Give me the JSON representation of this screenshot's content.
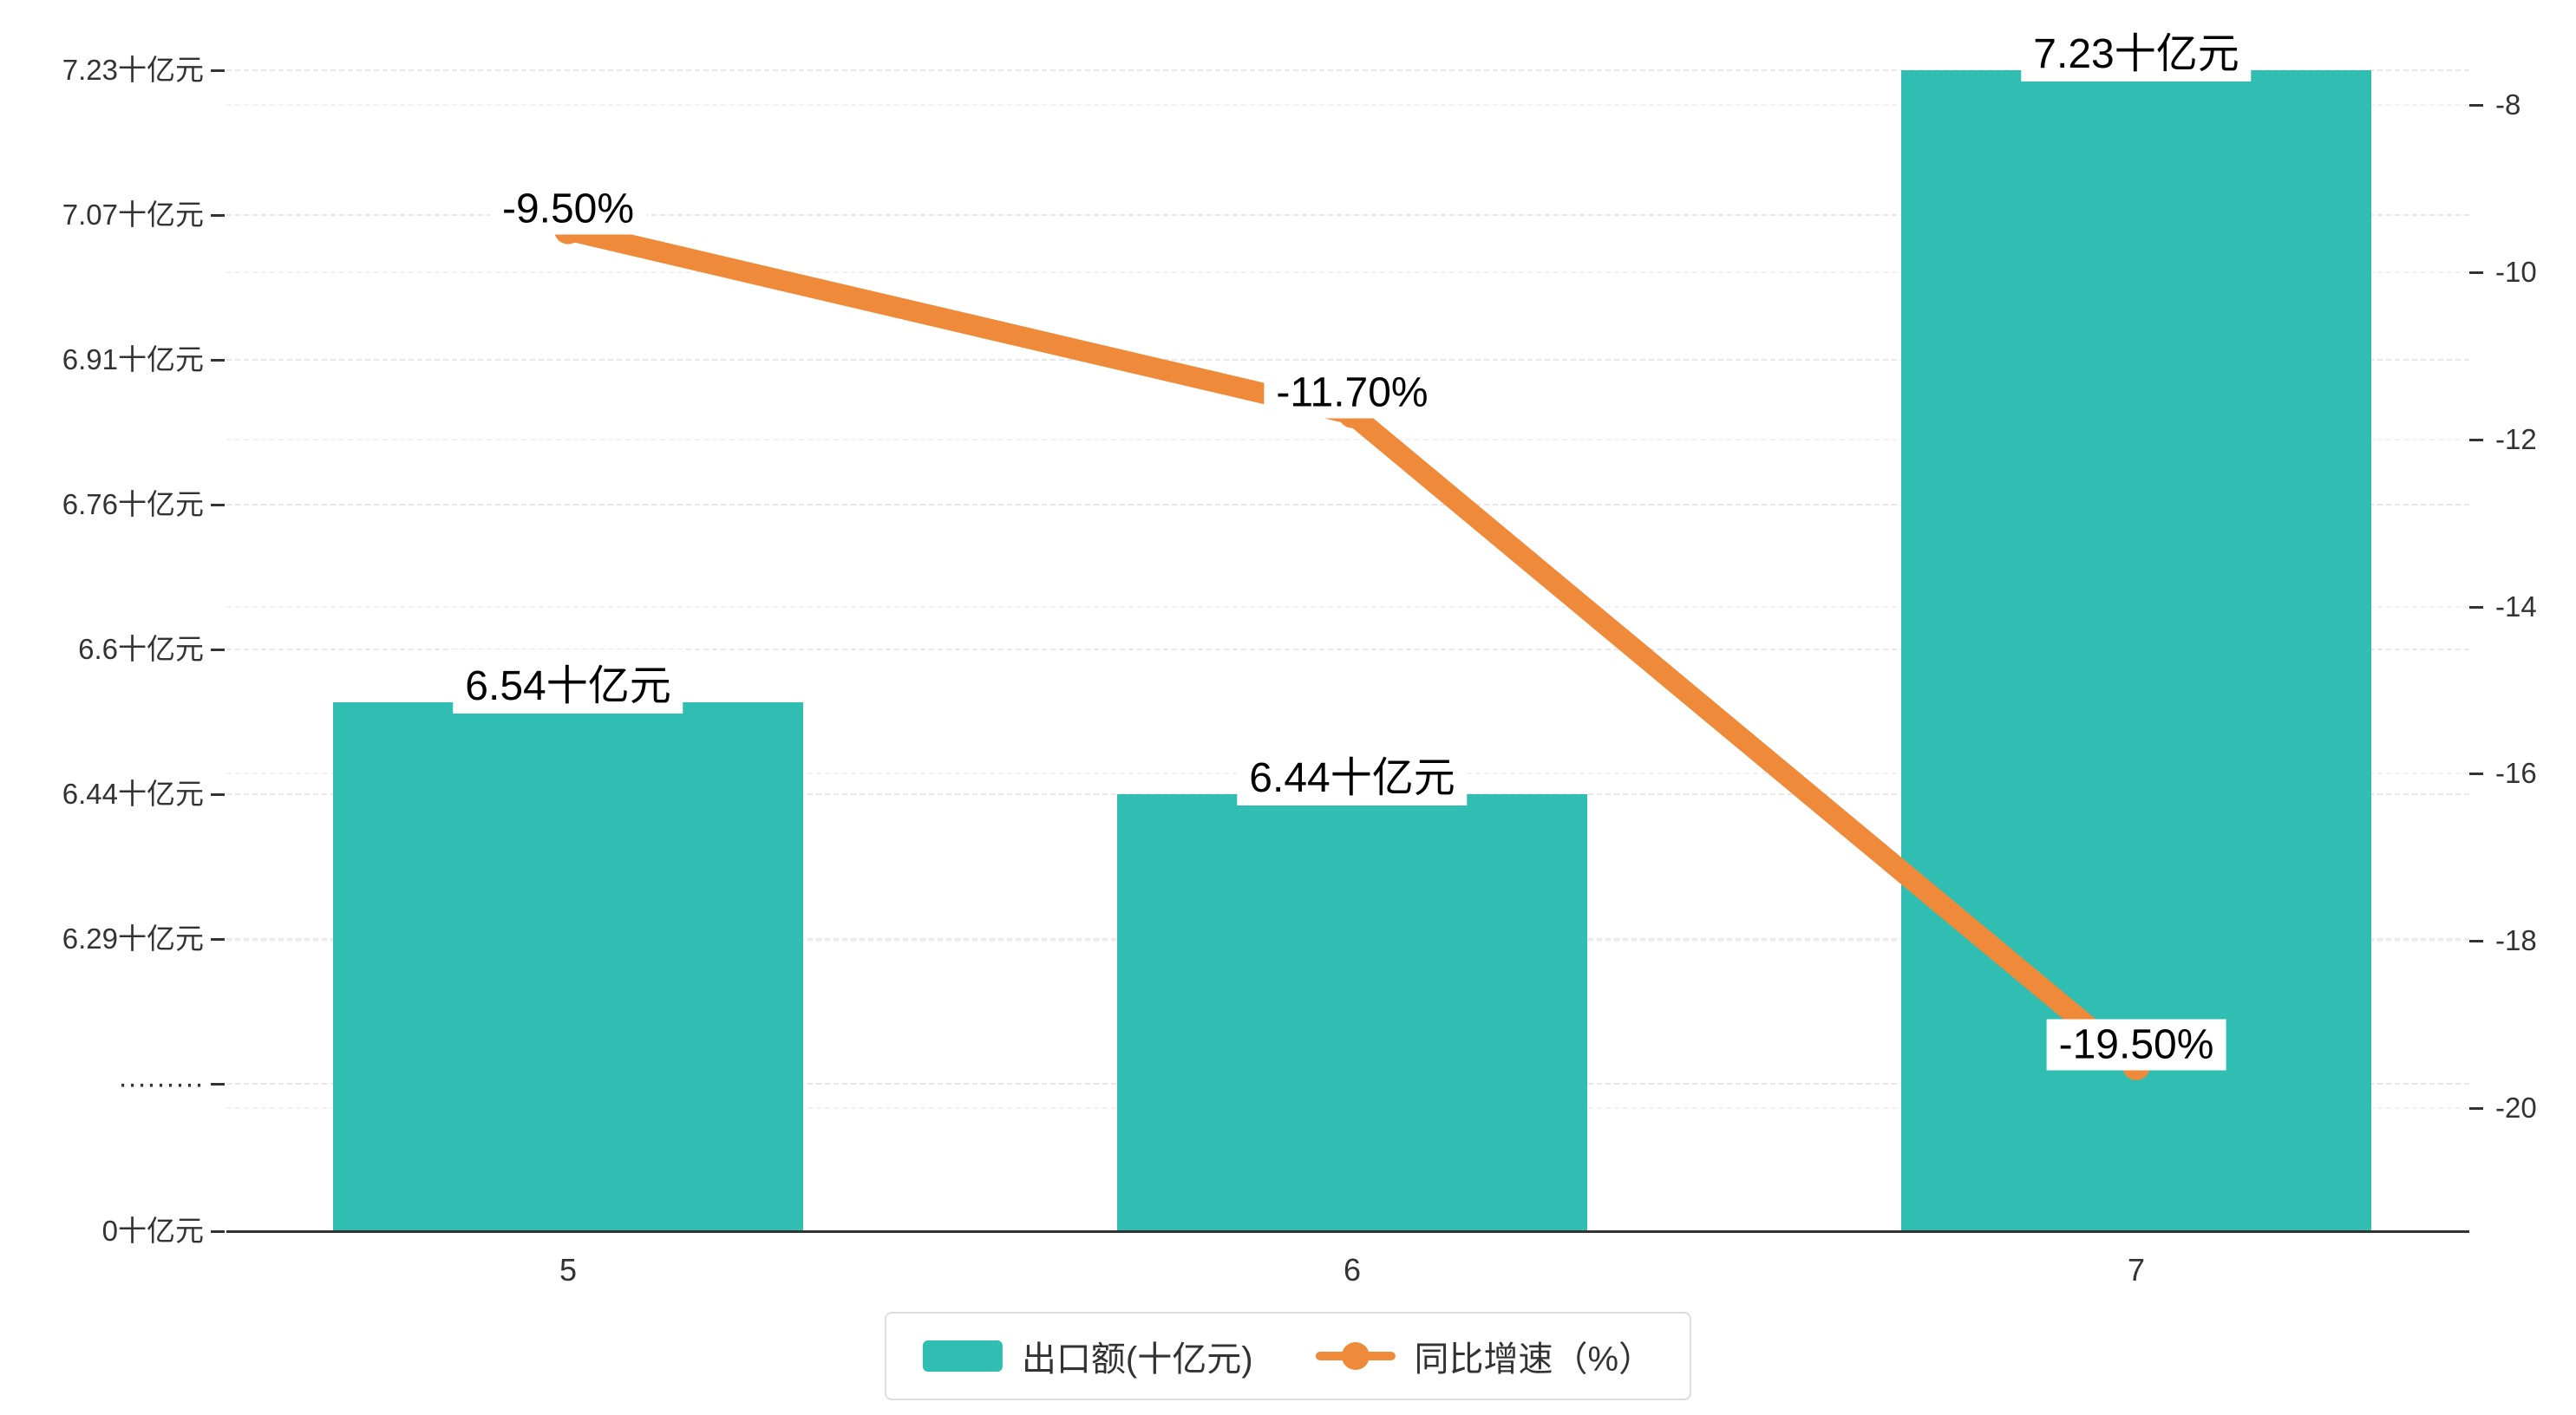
{
  "chart_data": {
    "type": "bar",
    "overlay_type": "line",
    "title": "",
    "xlabel": "",
    "ylabel": "",
    "categories": [
      "5",
      "6",
      "7"
    ],
    "series": [
      {
        "name": "出口额(十亿元)",
        "type": "bar",
        "yaxis": "left",
        "values": [
          6.54,
          6.44,
          7.23
        ],
        "labels": [
          "6.54十亿元",
          "6.44十亿元",
          "7.23十亿元"
        ],
        "color": "#2fbeb1"
      },
      {
        "name": "同比增速（%）",
        "type": "line",
        "yaxis": "right",
        "values": [
          -9.5,
          -11.7,
          -19.5
        ],
        "labels": [
          "-9.50%",
          "-11.70%",
          "-19.50%"
        ],
        "color": "#ee8a3a"
      }
    ],
    "left_axis": {
      "tick_labels": [
        "7.23十亿元",
        "7.07十亿元",
        "6.91十亿元",
        "6.76十亿元",
        "6.6十亿元",
        "6.44十亿元",
        "6.29十亿元",
        "·········",
        "0十亿元"
      ],
      "has_break": true
    },
    "right_axis": {
      "tick_labels": [
        "-8",
        "-10",
        "-12",
        "-14",
        "-16",
        "-18",
        "-20"
      ],
      "range": [
        -20,
        -8
      ]
    },
    "legend_position": "bottom",
    "grid": "dashed-horizontal"
  },
  "colors": {
    "bar": "#2fbeb1",
    "line": "#ee8a3a",
    "axis_line": "#333333",
    "text": "#333333",
    "data_label_text": "#000000",
    "grid_left": "#e8e8e8",
    "grid_right": "#f2f2f2",
    "label_bg": "#ffffff",
    "legend_border": "#dddddd"
  }
}
